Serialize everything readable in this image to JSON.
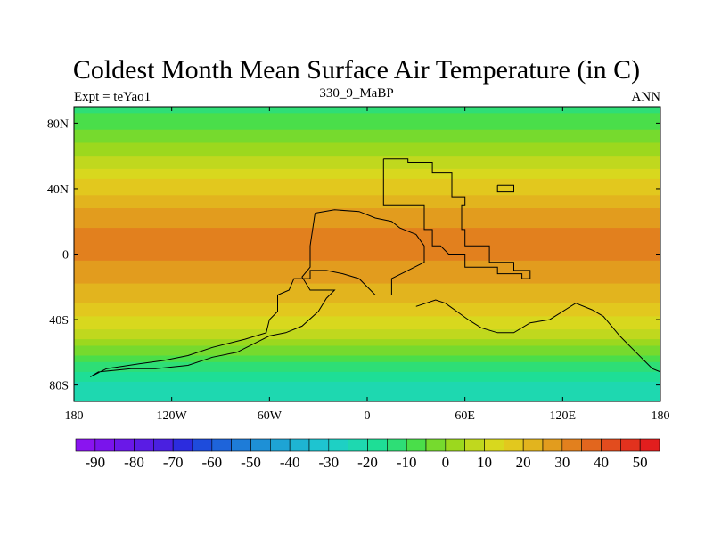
{
  "chart_data": {
    "type": "heatmap",
    "title": "Coldest Month Mean Surface Air Temperature (in C)",
    "subtitle_left": "Expt = teYao1",
    "subtitle_center": "330_9_MaBP",
    "subtitle_right": "ANN",
    "x_ticks": [
      {
        "value": -180,
        "label": "180"
      },
      {
        "value": -120,
        "label": "120W"
      },
      {
        "value": -60,
        "label": "60W"
      },
      {
        "value": 0,
        "label": "0"
      },
      {
        "value": 60,
        "label": "60E"
      },
      {
        "value": 120,
        "label": "120E"
      },
      {
        "value": 180,
        "label": "180"
      }
    ],
    "y_ticks": [
      {
        "value": 80,
        "label": "80N"
      },
      {
        "value": 40,
        "label": "40N"
      },
      {
        "value": 0,
        "label": "0"
      },
      {
        "value": -40,
        "label": "40S"
      },
      {
        "value": -80,
        "label": "80S"
      }
    ],
    "xlim": [
      -180,
      180
    ],
    "ylim": [
      -90,
      90
    ],
    "colorbar": {
      "levels": [
        -95,
        -90,
        -85,
        -80,
        -75,
        -70,
        -65,
        -60,
        -55,
        -50,
        -45,
        -40,
        -35,
        -30,
        -25,
        -20,
        -15,
        -10,
        -5,
        0,
        5,
        10,
        15,
        20,
        25,
        30,
        35,
        40,
        45,
        50,
        55
      ],
      "colors": [
        "#8a14f0",
        "#7a14ec",
        "#6a18e8",
        "#5a1ce4",
        "#4a20e0",
        "#2c2cde",
        "#1e4cdc",
        "#1e64da",
        "#1e7cd8",
        "#1e90d6",
        "#1ea4d4",
        "#1eb4d2",
        "#1ec4d0",
        "#1ed0c4",
        "#1ed8b0",
        "#1ede96",
        "#2ede76",
        "#4ade4a",
        "#76da2e",
        "#9cd81e",
        "#c0d81e",
        "#d8d81e",
        "#e2c81e",
        "#e2b41e",
        "#e29c1e",
        "#e2801e",
        "#e2661e",
        "#e24c1e",
        "#e2321e",
        "#e21e1e"
      ],
      "labels": [
        "-90",
        "-80",
        "-70",
        "-60",
        "-50",
        "-40",
        "-30",
        "-20",
        "-10",
        "0",
        "10",
        "20",
        "30",
        "40",
        "50"
      ],
      "label_values": [
        -90,
        -80,
        -70,
        -60,
        -50,
        -40,
        -30,
        -20,
        -10,
        0,
        10,
        20,
        30,
        40,
        50
      ]
    },
    "zonal_profile": [
      {
        "lat": 90,
        "temp": -12
      },
      {
        "lat": 80,
        "temp": -8
      },
      {
        "lat": 70,
        "temp": -2
      },
      {
        "lat": 60,
        "temp": 5
      },
      {
        "lat": 50,
        "temp": 12
      },
      {
        "lat": 40,
        "temp": 18
      },
      {
        "lat": 30,
        "temp": 24
      },
      {
        "lat": 20,
        "temp": 28
      },
      {
        "lat": 10,
        "temp": 32
      },
      {
        "lat": 0,
        "temp": 31
      },
      {
        "lat": -10,
        "temp": 28
      },
      {
        "lat": -20,
        "temp": 24
      },
      {
        "lat": -30,
        "temp": 20
      },
      {
        "lat": -40,
        "temp": 14
      },
      {
        "lat": -50,
        "temp": 6
      },
      {
        "lat": -60,
        "temp": -4
      },
      {
        "lat": -70,
        "temp": -14
      },
      {
        "lat": -80,
        "temp": -22
      },
      {
        "lat": -90,
        "temp": -24
      }
    ],
    "continent_outlines": [
      {
        "name": "north-block",
        "lonlat": [
          [
            10,
            58
          ],
          [
            25,
            58
          ],
          [
            25,
            56
          ],
          [
            40,
            56
          ],
          [
            40,
            50
          ],
          [
            52,
            50
          ],
          [
            52,
            35
          ],
          [
            60,
            35
          ],
          [
            60,
            30
          ],
          [
            58,
            30
          ],
          [
            58,
            15
          ],
          [
            60,
            15
          ],
          [
            60,
            5
          ],
          [
            75,
            5
          ],
          [
            75,
            -5
          ],
          [
            90,
            -5
          ],
          [
            90,
            -10
          ],
          [
            100,
            -10
          ],
          [
            100,
            -15
          ],
          [
            95,
            -15
          ],
          [
            95,
            -12
          ],
          [
            80,
            -12
          ],
          [
            80,
            -8
          ],
          [
            60,
            -8
          ],
          [
            60,
            0
          ],
          [
            50,
            0
          ],
          [
            45,
            5
          ],
          [
            40,
            5
          ],
          [
            40,
            15
          ],
          [
            35,
            15
          ],
          [
            35,
            30
          ],
          [
            10,
            30
          ],
          [
            10,
            58
          ]
        ]
      },
      {
        "name": "east-block",
        "lonlat": [
          [
            80,
            42
          ],
          [
            90,
            42
          ],
          [
            90,
            38
          ],
          [
            80,
            38
          ],
          [
            80,
            42
          ]
        ]
      },
      {
        "name": "gondwana",
        "lonlat": [
          [
            -32,
            25
          ],
          [
            -20,
            27
          ],
          [
            -5,
            26
          ],
          [
            5,
            22
          ],
          [
            15,
            20
          ],
          [
            20,
            16
          ],
          [
            25,
            14
          ],
          [
            30,
            12
          ],
          [
            35,
            5
          ],
          [
            35,
            -5
          ],
          [
            25,
            -10
          ],
          [
            15,
            -15
          ],
          [
            15,
            -25
          ],
          [
            5,
            -25
          ],
          [
            -5,
            -15
          ],
          [
            -15,
            -12
          ],
          [
            -25,
            -10
          ],
          [
            -35,
            -10
          ],
          [
            -35,
            -15
          ],
          [
            -45,
            -15
          ],
          [
            -48,
            -22
          ],
          [
            -55,
            -25
          ],
          [
            -55,
            -35
          ],
          [
            -60,
            -40
          ],
          [
            -62,
            -48
          ],
          [
            -75,
            -52
          ],
          [
            -95,
            -57
          ],
          [
            -110,
            -62
          ],
          [
            -125,
            -65
          ],
          [
            -140,
            -67
          ],
          [
            -160,
            -70
          ],
          [
            -170,
            -75
          ],
          [
            -165,
            -72
          ],
          [
            -145,
            -70
          ],
          [
            -130,
            -70
          ],
          [
            -110,
            -68
          ],
          [
            -95,
            -63
          ],
          [
            -80,
            -60
          ],
          [
            -70,
            -55
          ],
          [
            -60,
            -50
          ],
          [
            -50,
            -48
          ],
          [
            -40,
            -44
          ],
          [
            -30,
            -35
          ],
          [
            -25,
            -27
          ],
          [
            -20,
            -22
          ],
          [
            -35,
            -22
          ],
          [
            -40,
            -14
          ],
          [
            -35,
            -8
          ],
          [
            -35,
            5
          ],
          [
            -32,
            25
          ]
        ]
      },
      {
        "name": "gondwana-east",
        "lonlat": [
          [
            30,
            -32
          ],
          [
            42,
            -28
          ],
          [
            48,
            -30
          ],
          [
            55,
            -35
          ],
          [
            62,
            -40
          ],
          [
            70,
            -45
          ],
          [
            80,
            -48
          ],
          [
            90,
            -48
          ],
          [
            100,
            -42
          ],
          [
            112,
            -40
          ],
          [
            120,
            -35
          ],
          [
            128,
            -30
          ],
          [
            138,
            -34
          ],
          [
            145,
            -38
          ],
          [
            150,
            -44
          ],
          [
            155,
            -50
          ],
          [
            160,
            -55
          ],
          [
            165,
            -60
          ],
          [
            170,
            -65
          ],
          [
            175,
            -70
          ],
          [
            180,
            -72
          ]
        ]
      }
    ]
  }
}
